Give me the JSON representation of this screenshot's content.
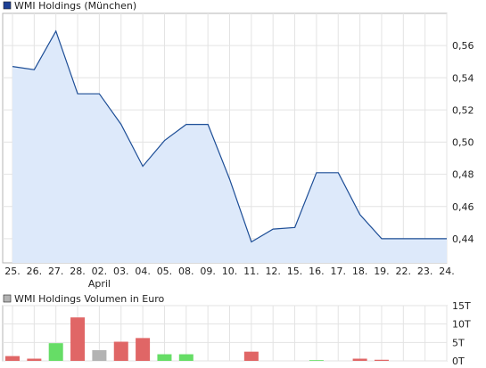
{
  "chart_data": [
    {
      "type": "area",
      "title": "WMI Holdings (München)",
      "legend_position": "top-left",
      "legend_swatch_color": "#1c3f94",
      "line_color": "#1c4d96",
      "fill_color": "#dde9fa",
      "grid": true,
      "ylim": [
        0.425,
        0.58
      ],
      "yticks": [
        "0,44",
        "0,46",
        "0,48",
        "0,50",
        "0,52",
        "0,54",
        "0,56"
      ],
      "yticks_values": [
        0.44,
        0.46,
        0.48,
        0.5,
        0.52,
        0.54,
        0.56
      ],
      "categories": [
        "25.",
        "26.",
        "27.",
        "28.",
        "02.",
        "03.",
        "04.",
        "05.",
        "08.",
        "09.",
        "10.",
        "11.",
        "12.",
        "15.",
        "16.",
        "17.",
        "18.",
        "19.",
        "22.",
        "23.",
        "24."
      ],
      "month_label": "April",
      "month_label_index": 4,
      "values": [
        0.547,
        0.545,
        0.569,
        0.53,
        0.53,
        0.511,
        0.485,
        0.501,
        0.511,
        0.511,
        0.477,
        0.438,
        0.446,
        0.447,
        0.481,
        0.481,
        0.455,
        0.44,
        0.44,
        0.44,
        0.44
      ]
    },
    {
      "type": "bar",
      "title": "WMI Holdings Volumen in Euro",
      "legend_position": "top-left",
      "legend_swatch_color": "#b3b3b3",
      "grid": true,
      "ylim": [
        0,
        15
      ],
      "yticks": [
        "0T",
        "5T",
        "10T",
        "15T"
      ],
      "yticks_values": [
        0,
        5,
        10,
        15
      ],
      "colors": {
        "down": "#e06666",
        "up": "#66dd66",
        "flat": "#b3b3b3"
      },
      "values": [
        1.3,
        0.6,
        4.8,
        11.8,
        2.9,
        5.2,
        6.2,
        1.8,
        1.8,
        0,
        0,
        2.5,
        0,
        0,
        0.2,
        0,
        0.6,
        0.3,
        0,
        0,
        0
      ],
      "directions": [
        "down",
        "down",
        "up",
        "down",
        "flat",
        "down",
        "down",
        "up",
        "up",
        "flat",
        "flat",
        "down",
        "flat",
        "flat",
        "up",
        "flat",
        "down",
        "down",
        "flat",
        "flat",
        "flat"
      ]
    }
  ]
}
